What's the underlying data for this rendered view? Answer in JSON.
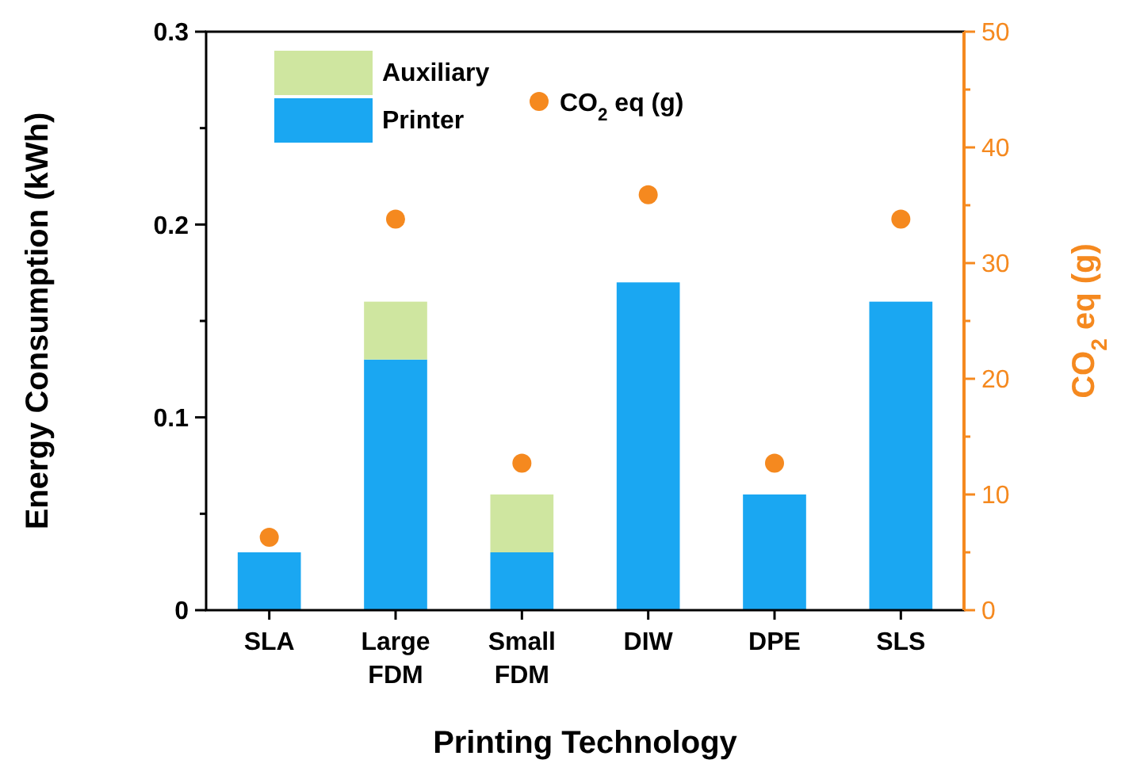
{
  "chart_data": {
    "type": "bar",
    "stacked": true,
    "xlabel": "Printing Technology",
    "ylabel": "Energy Consumption (kWh)",
    "y2label": "CO$_{2}$ eq (g)",
    "categories": [
      "SLA",
      "Large FDM",
      "Small FDM",
      "DIW",
      "DPE",
      "SLS"
    ],
    "series": [
      {
        "name": "Printer",
        "color": "#1aa7f2",
        "values": [
          0.03,
          0.13,
          0.03,
          0.17,
          0.06,
          0.16
        ]
      },
      {
        "name": "Auxiliary",
        "color": "#cfe6a0",
        "values": [
          0,
          0.03,
          0.03,
          0,
          0,
          0
        ]
      },
      {
        "name": "CO$_{2}$ eq (g)",
        "type": "scatter",
        "axis": "y2",
        "color": "#f5891f",
        "values": [
          6.3,
          33.8,
          12.7,
          35.9,
          12.7,
          33.8
        ]
      }
    ],
    "ylim": [
      0,
      0.3
    ],
    "yticks": [
      0,
      {
        "value": 0.05,
        "label": null
      },
      0.1,
      {
        "value": 0.15,
        "label": null
      },
      0.2,
      {
        "value": 0.25,
        "label": null
      },
      0.3
    ],
    "y2lim": [
      0,
      50
    ],
    "y2ticks": [
      0,
      {
        "value": 5,
        "label": null
      },
      10,
      {
        "value": 15,
        "label": null
      },
      20,
      {
        "value": 25,
        "label": null
      },
      30,
      {
        "value": 35,
        "label": null
      },
      40,
      {
        "value": 45,
        "label": null
      },
      50
    ],
    "marker": "circle",
    "legend": "top left",
    "grid": false
  }
}
